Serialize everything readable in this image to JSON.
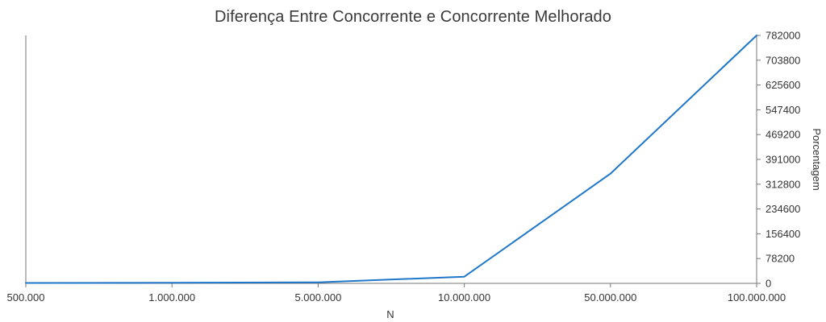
{
  "chart_data": {
    "type": "line",
    "title": "Diferença Entre Concorrente e Concorrente Melhorado",
    "xlabel": "N",
    "ylabel": "Porcentagem",
    "x_axis_scale": "categorical",
    "y_axis_position": "right",
    "categories": [
      "500.000",
      "1.000.000",
      "5.000.000",
      "10.000.000",
      "50.000.000",
      "100.000.000"
    ],
    "series": [
      {
        "values": [
          1200,
          2000,
          3200,
          21000,
          346000,
          782000
        ]
      }
    ],
    "ylim": [
      0,
      782000
    ],
    "yticks": [
      0,
      78200,
      156400,
      234600,
      312800,
      391000,
      469200,
      547400,
      625600,
      703800,
      782000
    ],
    "grid": false,
    "line_color": "#1f77c9",
    "axis_color": "#777777"
  }
}
